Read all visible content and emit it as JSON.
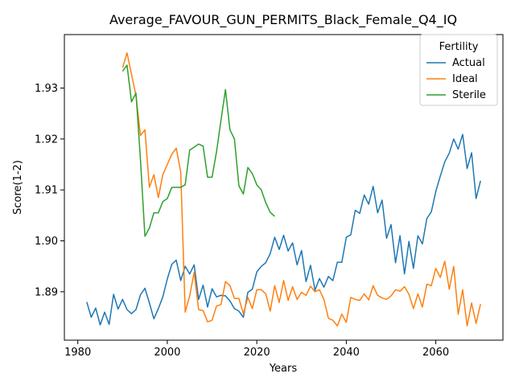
{
  "chart_data": {
    "type": "line",
    "title": "Average_FAVOUR_GUN_PERMITS_Black_Female_Q4_IQ",
    "xlabel": "Years",
    "ylabel": "Score(1-2)",
    "xlim": [
      1977,
      2075
    ],
    "ylim": [
      1.8805,
      1.9405
    ],
    "xticks": [
      1980,
      2000,
      2020,
      2040,
      2060
    ],
    "yticks": [
      1.89,
      1.9,
      1.91,
      1.92,
      1.93
    ],
    "ytick_labels": [
      "1.89",
      "1.90",
      "1.91",
      "1.92",
      "1.93"
    ],
    "grid": false,
    "legend": {
      "title": "Fertility",
      "placement": "top-right"
    },
    "series": [
      {
        "name": "Actual",
        "color": "#1f77b4",
        "x": [
          1982,
          1983,
          1984,
          1985,
          1986,
          1987,
          1988,
          1989,
          1990,
          1991,
          1992,
          1993,
          1994,
          1995,
          1996,
          1997,
          1998,
          1999,
          2000,
          2001,
          2002,
          2003,
          2004,
          2005,
          2006,
          2007,
          2008,
          2009,
          2010,
          2011,
          2012,
          2013,
          2014,
          2015,
          2016,
          2017,
          2018,
          2019,
          2020,
          2021,
          2022,
          2023,
          2024,
          2025,
          2026,
          2027,
          2028,
          2029,
          2030,
          2031,
          2032,
          2033,
          2034,
          2035,
          2036,
          2037,
          2038,
          2039,
          2040,
          2041,
          2042,
          2043,
          2044,
          2045,
          2046,
          2047,
          2048,
          2049,
          2050,
          2051,
          2052,
          2053,
          2054,
          2055,
          2056,
          2057,
          2058,
          2059,
          2060,
          2061,
          2062,
          2063,
          2064,
          2065,
          2066,
          2067,
          2068,
          2069,
          2070
        ],
        "values": [
          1.888,
          1.885,
          1.8868,
          1.8835,
          1.886,
          1.8836,
          1.8895,
          1.8866,
          1.8885,
          1.8865,
          1.8857,
          1.8865,
          1.8894,
          1.8907,
          1.8878,
          1.8847,
          1.8867,
          1.889,
          1.8925,
          1.8954,
          1.8962,
          1.8922,
          1.895,
          1.8935,
          1.8953,
          1.8885,
          1.8913,
          1.887,
          1.8906,
          1.889,
          1.8893,
          1.8892,
          1.8882,
          1.8867,
          1.8862,
          1.885,
          1.8899,
          1.8905,
          1.8939,
          1.895,
          1.8957,
          1.8975,
          1.9007,
          1.8983,
          1.9011,
          1.898,
          1.8996,
          1.8953,
          1.8981,
          1.892,
          1.8952,
          1.8903,
          1.8926,
          1.8909,
          1.893,
          1.8922,
          1.8958,
          1.8958,
          1.9007,
          1.9012,
          1.906,
          1.9054,
          1.909,
          1.9072,
          1.9107,
          1.9055,
          1.908,
          1.9005,
          1.9032,
          1.8957,
          1.901,
          1.8935,
          1.8999,
          1.8946,
          1.901,
          1.8994,
          1.9044,
          1.9057,
          1.9097,
          1.9127,
          1.9155,
          1.9172,
          1.92,
          1.918,
          1.9209,
          1.9142,
          1.9173,
          1.9083,
          1.9118
        ]
      },
      {
        "name": "Ideal",
        "color": "#ff7f0e",
        "x": [
          1990,
          1991,
          1992,
          1993,
          1994,
          1995,
          1996,
          1997,
          1998,
          1999,
          2000,
          2001,
          2002,
          2003,
          2004,
          2005,
          2006,
          2007,
          2008,
          2009,
          2010,
          2011,
          2012,
          2013,
          2014,
          2015,
          2016,
          2017,
          2018,
          2019,
          2020,
          2021,
          2022,
          2023,
          2024,
          2025,
          2026,
          2027,
          2028,
          2029,
          2030,
          2031,
          2032,
          2033,
          2034,
          2035,
          2036,
          2037,
          2038,
          2039,
          2040,
          2041,
          2042,
          2043,
          2044,
          2045,
          2046,
          2047,
          2048,
          2049,
          2050,
          2051,
          2052,
          2053,
          2054,
          2055,
          2056,
          2057,
          2058,
          2059,
          2060,
          2061,
          2062,
          2063,
          2064,
          2065,
          2066,
          2067,
          2068,
          2069,
          2070
        ],
        "values": [
          1.934,
          1.9369,
          1.9327,
          1.9285,
          1.9207,
          1.9218,
          1.9105,
          1.913,
          1.9085,
          1.913,
          1.915,
          1.917,
          1.9182,
          1.9135,
          1.886,
          1.8892,
          1.8938,
          1.8865,
          1.8863,
          1.8841,
          1.8844,
          1.8872,
          1.8875,
          1.892,
          1.8912,
          1.8887,
          1.8887,
          1.8857,
          1.8889,
          1.8867,
          1.8904,
          1.8904,
          1.8896,
          1.8862,
          1.8912,
          1.8879,
          1.8922,
          1.8883,
          1.891,
          1.8885,
          1.8899,
          1.8893,
          1.8911,
          1.89,
          1.8904,
          1.8885,
          1.8848,
          1.8844,
          1.8833,
          1.8856,
          1.884,
          1.8889,
          1.8885,
          1.8883,
          1.8896,
          1.8884,
          1.8912,
          1.8893,
          1.8888,
          1.8885,
          1.8892,
          1.8904,
          1.8901,
          1.891,
          1.8895,
          1.8867,
          1.8896,
          1.887,
          1.8915,
          1.8912,
          1.8946,
          1.8928,
          1.896,
          1.8905,
          1.895,
          1.8856,
          1.8904,
          1.8833,
          1.8878,
          1.8838,
          1.8876
        ]
      },
      {
        "name": "Sterile",
        "color": "#2ca02c",
        "x": [
          1990,
          1991,
          1992,
          1993,
          1994,
          1995,
          1996,
          1997,
          1998,
          1999,
          2000,
          2001,
          2002,
          2003,
          2004,
          2005,
          2006,
          2007,
          2008,
          2009,
          2010,
          2011,
          2012,
          2013,
          2014,
          2015,
          2016,
          2017,
          2018,
          2019,
          2020,
          2021,
          2022,
          2023,
          2024
        ],
        "values": [
          1.9333,
          1.9345,
          1.9273,
          1.929,
          1.916,
          1.9009,
          1.9025,
          1.9055,
          1.9055,
          1.9077,
          1.9083,
          1.9105,
          1.9105,
          1.9105,
          1.911,
          1.9178,
          1.9184,
          1.919,
          1.9186,
          1.9125,
          1.9125,
          1.9175,
          1.9237,
          1.9297,
          1.9218,
          1.92,
          1.9108,
          1.9092,
          1.9144,
          1.9132,
          1.911,
          1.91,
          1.9075,
          1.9056,
          1.9048
        ]
      }
    ]
  }
}
